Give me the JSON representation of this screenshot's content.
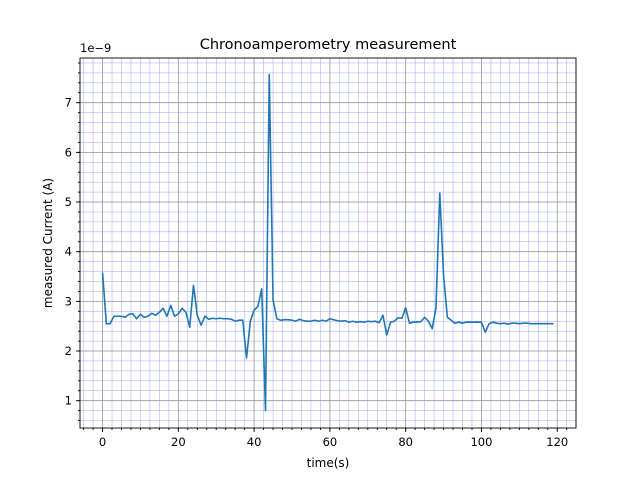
{
  "chart_data": {
    "type": "line",
    "title": "Chronoamperometry measurement",
    "xlabel": "time(s)",
    "ylabel": "measured Current (A)",
    "y_offset_text": "1e−9",
    "xlim": [
      -5.95,
      124.95
    ],
    "ylim": [
      0.45,
      7.9
    ],
    "x_ticks": [
      0,
      20,
      40,
      60,
      80,
      100,
      120
    ],
    "x_tick_labels": [
      "0",
      "20",
      "40",
      "60",
      "80",
      "100",
      "120"
    ],
    "x_minor_step": 2.5,
    "y_ticks": [
      1,
      2,
      3,
      4,
      5,
      6,
      7
    ],
    "y_tick_labels": [
      "1",
      "2",
      "3",
      "4",
      "5",
      "6",
      "7"
    ],
    "y_minor_step": 0.2,
    "grid": true,
    "color": "#1f77b4",
    "series": [
      {
        "x": [
          0,
          1,
          2,
          3,
          4,
          5,
          6,
          7,
          8,
          9,
          10,
          11,
          12,
          13,
          14,
          15,
          16,
          17,
          18,
          19,
          20,
          21,
          22,
          23,
          24,
          25,
          26,
          27,
          28,
          29,
          30,
          31,
          32,
          33,
          34,
          35,
          36,
          37,
          38,
          39,
          40,
          41,
          42,
          43,
          44,
          45,
          46,
          47,
          48,
          49,
          50,
          51,
          52,
          53,
          54,
          55,
          56,
          57,
          58,
          59,
          60,
          61,
          62,
          63,
          64,
          65,
          66,
          67,
          68,
          69,
          70,
          71,
          72,
          73,
          74,
          75,
          76,
          77,
          78,
          79,
          80,
          81,
          82,
          83,
          84,
          85,
          86,
          87,
          88,
          89,
          90,
          91,
          92,
          93,
          94,
          95,
          96,
          97,
          98,
          99,
          100,
          101,
          102,
          103,
          104,
          105,
          106,
          107,
          108,
          109,
          110,
          111,
          112,
          113,
          114,
          115,
          116,
          117,
          118,
          119
        ],
        "values": [
          3.58,
          2.55,
          2.55,
          2.7,
          2.7,
          2.7,
          2.68,
          2.74,
          2.75,
          2.65,
          2.74,
          2.68,
          2.7,
          2.76,
          2.72,
          2.78,
          2.86,
          2.7,
          2.92,
          2.7,
          2.75,
          2.86,
          2.78,
          2.48,
          3.32,
          2.72,
          2.52,
          2.7,
          2.64,
          2.66,
          2.65,
          2.66,
          2.65,
          2.65,
          2.64,
          2.6,
          2.62,
          2.62,
          1.86,
          2.6,
          2.82,
          2.9,
          3.25,
          0.8,
          7.57,
          3.03,
          2.65,
          2.62,
          2.63,
          2.63,
          2.62,
          2.6,
          2.64,
          2.61,
          2.6,
          2.6,
          2.62,
          2.6,
          2.62,
          2.6,
          2.65,
          2.63,
          2.61,
          2.6,
          2.61,
          2.58,
          2.6,
          2.58,
          2.59,
          2.58,
          2.6,
          2.59,
          2.6,
          2.57,
          2.72,
          2.32,
          2.58,
          2.6,
          2.67,
          2.66,
          2.87,
          2.56,
          2.58,
          2.58,
          2.59,
          2.68,
          2.6,
          2.45,
          2.87,
          5.18,
          3.52,
          2.68,
          2.62,
          2.56,
          2.58,
          2.56,
          2.58,
          2.58,
          2.58,
          2.58,
          2.58,
          2.38,
          2.55,
          2.58,
          2.56,
          2.55,
          2.56,
          2.54,
          2.56,
          2.56,
          2.55,
          2.56,
          2.56,
          2.55,
          2.55,
          2.55,
          2.55,
          2.55,
          2.55,
          2.55
        ]
      }
    ]
  }
}
